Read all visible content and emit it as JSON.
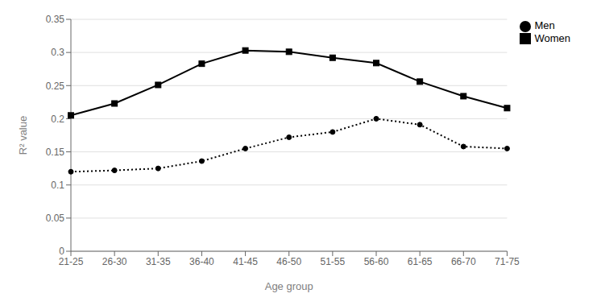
{
  "chart_data": {
    "type": "line",
    "categories": [
      "21-25",
      "26-30",
      "31-35",
      "36-40",
      "41-45",
      "46-50",
      "51-55",
      "56-60",
      "61-65",
      "66-70",
      "71-75"
    ],
    "series": [
      {
        "name": "Men",
        "color": "#000000",
        "line_style": "dotted",
        "marker": "circle",
        "values": [
          0.12,
          0.122,
          0.125,
          0.136,
          0.155,
          0.172,
          0.18,
          0.2,
          0.191,
          0.158,
          0.155
        ]
      },
      {
        "name": "Women",
        "color": "#000000",
        "line_style": "solid",
        "marker": "square",
        "values": [
          0.205,
          0.223,
          0.251,
          0.283,
          0.303,
          0.301,
          0.292,
          0.284,
          0.256,
          0.234,
          0.216
        ]
      }
    ],
    "xlabel": "Age group",
    "ylabel": "R² value",
    "ylim": [
      0,
      0.35
    ],
    "yticks": [
      0,
      0.05,
      0.1,
      0.15,
      0.2,
      0.25,
      0.3,
      0.35
    ],
    "grid": true,
    "legend": "right"
  }
}
